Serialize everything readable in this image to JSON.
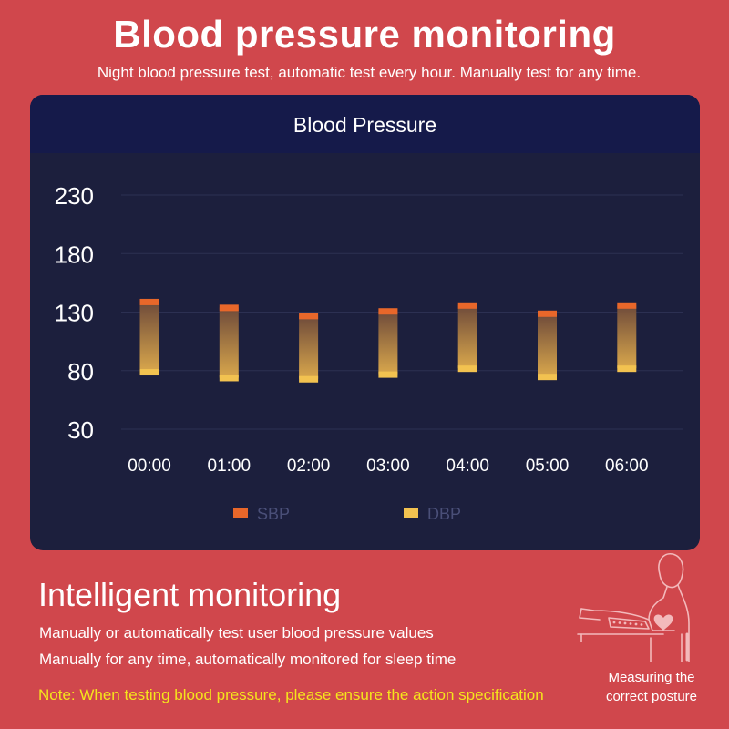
{
  "header": {
    "title": "Blood pressure monitoring",
    "subtitle": "Night blood pressure test, automatic test every hour. Manually test for any time."
  },
  "chart_data": {
    "type": "bar",
    "title": "Blood Pressure",
    "categories": [
      "00:00",
      "01:00",
      "02:00",
      "03:00",
      "04:00",
      "05:00",
      "06:00"
    ],
    "series": [
      {
        "name": "SBP",
        "color": "#e8672a",
        "values": [
          139,
          134,
          127,
          131,
          136,
          129,
          136
        ]
      },
      {
        "name": "DBP",
        "color": "#f2c250",
        "values": [
          79,
          74,
          73,
          77,
          82,
          75,
          82
        ]
      }
    ],
    "y_ticks": [
      230,
      180,
      130,
      80,
      30
    ],
    "ylim": [
      30,
      230
    ],
    "xlabel": "",
    "ylabel": "",
    "grid": true,
    "legend": [
      "SBP",
      "DBP"
    ],
    "legend_position": "bottom"
  },
  "section": {
    "title": "Intelligent monitoring",
    "line1": "Manually or automatically test user blood pressure values",
    "line2": "Manually for any time, automatically monitored for sleep time",
    "note": "Note: When testing blood pressure, please ensure the action specification"
  },
  "posture": {
    "caption_line1": "Measuring the",
    "caption_line2": "correct posture"
  }
}
